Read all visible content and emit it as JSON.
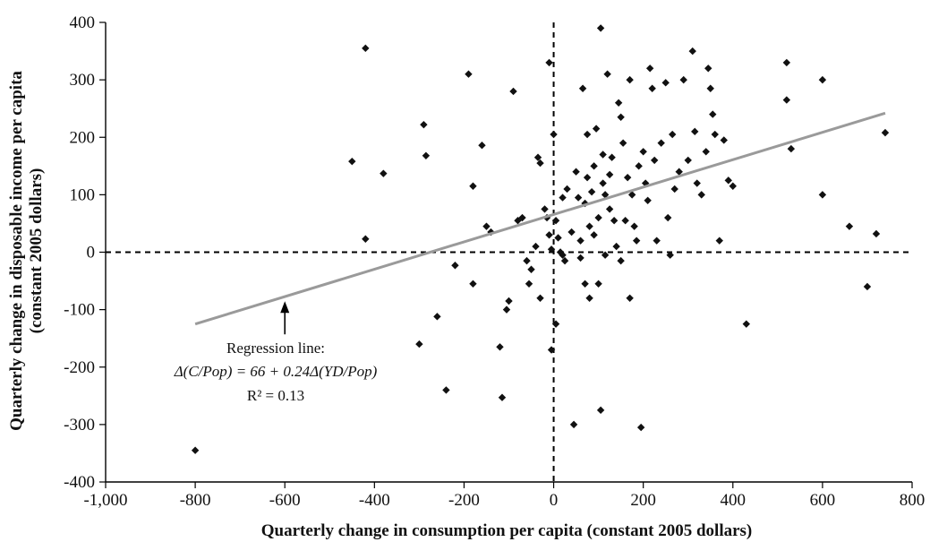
{
  "chart_data": {
    "type": "scatter",
    "title": "",
    "xlabel": "Quarterly change in consumption per capita (constant 2005 dollars)",
    "ylabel": "Quarterly change in disposable income per capita (constant 2005 dollars)",
    "ylabel_lines": [
      "Quarterly change in disposable income per capita",
      "(constant 2005 dollars)"
    ],
    "xlim": [
      -1000,
      800
    ],
    "ylim": [
      -400,
      400
    ],
    "xticks": [
      -1000,
      -800,
      -600,
      -400,
      -200,
      0,
      200,
      400,
      600,
      800
    ],
    "xtick_labels": [
      "-1,000",
      "-800",
      "-600",
      "-400",
      "-200",
      "0",
      "200",
      "400",
      "600",
      "800"
    ],
    "yticks": [
      -400,
      -300,
      -200,
      -100,
      0,
      100,
      200,
      300,
      400
    ],
    "ytick_labels": [
      "-400",
      "-300",
      "-200",
      "-100",
      "0",
      "100",
      "200",
      "300",
      "400"
    ],
    "grid": false,
    "reference_lines": {
      "x": 0,
      "y": 0,
      "style": "dashed"
    },
    "regression_line": {
      "x": [
        -800,
        740
      ],
      "y": [
        -125,
        242
      ],
      "color": "#9a9a9a"
    },
    "annotation": {
      "heading": "Regression line:",
      "equation": "Δ(C/Pop) = 66 + 0.24Δ(YD/Pop)",
      "r2": "R² = 0.13",
      "arrow_target": {
        "x": -600,
        "y": -90
      }
    },
    "points": [
      [
        -800,
        -345
      ],
      [
        -420,
        355
      ],
      [
        -450,
        158
      ],
      [
        -380,
        137
      ],
      [
        -420,
        23
      ],
      [
        -290,
        222
      ],
      [
        -285,
        168
      ],
      [
        -260,
        -112
      ],
      [
        -300,
        -160
      ],
      [
        -240,
        -240
      ],
      [
        -220,
        -23
      ],
      [
        -190,
        310
      ],
      [
        -180,
        115
      ],
      [
        -180,
        -55
      ],
      [
        -160,
        186
      ],
      [
        -150,
        45
      ],
      [
        -140,
        35
      ],
      [
        -120,
        -165
      ],
      [
        -115,
        -253
      ],
      [
        -105,
        -100
      ],
      [
        -100,
        -85
      ],
      [
        -90,
        280
      ],
      [
        -80,
        55
      ],
      [
        -70,
        60
      ],
      [
        -60,
        -15
      ],
      [
        -55,
        -55
      ],
      [
        -50,
        -30
      ],
      [
        -40,
        10
      ],
      [
        -35,
        165
      ],
      [
        -30,
        155
      ],
      [
        -30,
        -80
      ],
      [
        -20,
        75
      ],
      [
        -15,
        60
      ],
      [
        -10,
        30
      ],
      [
        -5,
        5
      ],
      [
        -10,
        330
      ],
      [
        -5,
        -170
      ],
      [
        0,
        205
      ],
      [
        5,
        55
      ],
      [
        5,
        -125
      ],
      [
        10,
        25
      ],
      [
        15,
        0
      ],
      [
        20,
        -5
      ],
      [
        20,
        95
      ],
      [
        25,
        -15
      ],
      [
        30,
        110
      ],
      [
        40,
        35
      ],
      [
        45,
        -300
      ],
      [
        50,
        140
      ],
      [
        55,
        95
      ],
      [
        60,
        20
      ],
      [
        60,
        -10
      ],
      [
        65,
        285
      ],
      [
        70,
        85
      ],
      [
        70,
        -55
      ],
      [
        75,
        205
      ],
      [
        75,
        130
      ],
      [
        80,
        45
      ],
      [
        80,
        -80
      ],
      [
        85,
        105
      ],
      [
        90,
        150
      ],
      [
        90,
        30
      ],
      [
        95,
        215
      ],
      [
        100,
        -55
      ],
      [
        100,
        60
      ],
      [
        105,
        390
      ],
      [
        105,
        -275
      ],
      [
        110,
        170
      ],
      [
        110,
        120
      ],
      [
        115,
        100
      ],
      [
        115,
        -5
      ],
      [
        120,
        310
      ],
      [
        125,
        135
      ],
      [
        125,
        75
      ],
      [
        130,
        165
      ],
      [
        135,
        55
      ],
      [
        140,
        10
      ],
      [
        145,
        260
      ],
      [
        150,
        235
      ],
      [
        150,
        -15
      ],
      [
        155,
        190
      ],
      [
        160,
        55
      ],
      [
        165,
        130
      ],
      [
        170,
        300
      ],
      [
        170,
        -80
      ],
      [
        175,
        100
      ],
      [
        180,
        45
      ],
      [
        185,
        20
      ],
      [
        190,
        150
      ],
      [
        195,
        -305
      ],
      [
        200,
        175
      ],
      [
        205,
        120
      ],
      [
        210,
        90
      ],
      [
        215,
        320
      ],
      [
        220,
        285
      ],
      [
        225,
        160
      ],
      [
        230,
        20
      ],
      [
        240,
        190
      ],
      [
        250,
        295
      ],
      [
        255,
        60
      ],
      [
        260,
        -5
      ],
      [
        265,
        205
      ],
      [
        270,
        110
      ],
      [
        280,
        140
      ],
      [
        290,
        300
      ],
      [
        300,
        160
      ],
      [
        310,
        350
      ],
      [
        315,
        210
      ],
      [
        320,
        120
      ],
      [
        330,
        100
      ],
      [
        340,
        175
      ],
      [
        345,
        320
      ],
      [
        350,
        285
      ],
      [
        355,
        240
      ],
      [
        360,
        205
      ],
      [
        370,
        20
      ],
      [
        380,
        195
      ],
      [
        390,
        125
      ],
      [
        400,
        115
      ],
      [
        430,
        -125
      ],
      [
        520,
        330
      ],
      [
        520,
        265
      ],
      [
        530,
        180
      ],
      [
        600,
        300
      ],
      [
        600,
        100
      ],
      [
        660,
        45
      ],
      [
        700,
        -60
      ],
      [
        720,
        32
      ],
      [
        740,
        208
      ]
    ]
  }
}
